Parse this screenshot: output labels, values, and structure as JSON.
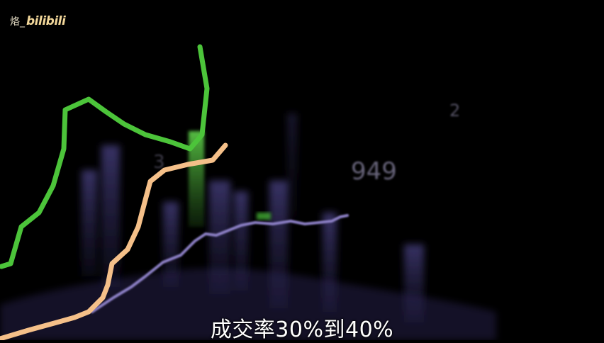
{
  "watermark": {
    "user": "烙_",
    "logo": "bilibili"
  },
  "subtitle": "成交率30%到40%",
  "background_numbers": {
    "big": "949",
    "top_right": "2",
    "small_row": "",
    "left_partial": "3"
  },
  "colors": {
    "background": "#000000",
    "green_line": "#4cc43a",
    "peach_line": "#f5c089",
    "purple_line": "#8b7fc4",
    "bars": "#3a3566"
  }
}
